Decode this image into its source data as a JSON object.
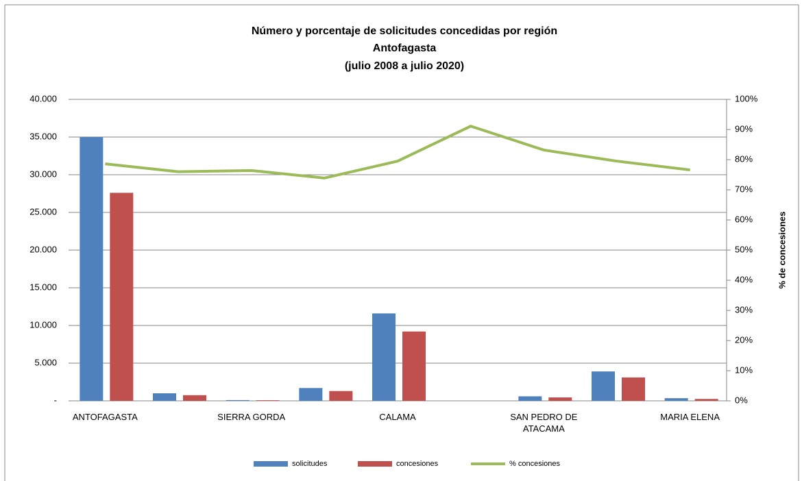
{
  "chart_data": {
    "type": "bar-line",
    "title": [
      "Número y porcentaje de solicitudes concedidas por región",
      "Antofagasta",
      "(julio 2008 a   julio 2020)"
    ],
    "categories": [
      "ANTOFAGASTA",
      null,
      "SIERRA GORDA",
      null,
      "CALAMA",
      null,
      "SAN PEDRO DE ATACAMA",
      null,
      "MARIA ELENA"
    ],
    "series": [
      {
        "name": "solicitudes",
        "color": "#4f81bd",
        "type": "bar",
        "values": [
          35000,
          1000,
          100,
          1700,
          11600,
          0,
          600,
          3900,
          350
        ]
      },
      {
        "name": "concesiones",
        "color": "#c0504d",
        "type": "bar",
        "values": [
          27600,
          750,
          80,
          1300,
          9200,
          0,
          450,
          3100,
          250
        ]
      },
      {
        "name": "% concesiones",
        "color": "#9bbb59",
        "type": "line",
        "axis": "y2",
        "values": [
          78.6,
          76,
          76.4,
          73.9,
          79.5,
          91.1,
          83.2,
          79.5,
          76.6
        ]
      }
    ],
    "ylim": [
      0,
      40000
    ],
    "yticks": [
      {
        "value": 0,
        "label": "-"
      },
      {
        "value": 5000,
        "label": "5.000"
      },
      {
        "value": 10000,
        "label": "10.000"
      },
      {
        "value": 15000,
        "label": "15.000"
      },
      {
        "value": 20000,
        "label": "20.000"
      },
      {
        "value": 25000,
        "label": "25.000"
      },
      {
        "value": 30000,
        "label": "30.000"
      },
      {
        "value": 35000,
        "label": "35.000"
      },
      {
        "value": 40000,
        "label": "40.000"
      }
    ],
    "y2lim": [
      0,
      100
    ],
    "y2ticks": [
      {
        "value": 0,
        "label": "0%"
      },
      {
        "value": 10,
        "label": "10%"
      },
      {
        "value": 20,
        "label": "20%"
      },
      {
        "value": 30,
        "label": "30%"
      },
      {
        "value": 40,
        "label": "40%"
      },
      {
        "value": 50,
        "label": "50%"
      },
      {
        "value": 60,
        "label": "60%"
      },
      {
        "value": 70,
        "label": "70%"
      },
      {
        "value": 80,
        "label": "80%"
      },
      {
        "value": 90,
        "label": "90%"
      },
      {
        "value": 100,
        "label": "100%"
      }
    ],
    "y2_label": "% de concesiones",
    "grid": true,
    "legend": "bottom"
  }
}
